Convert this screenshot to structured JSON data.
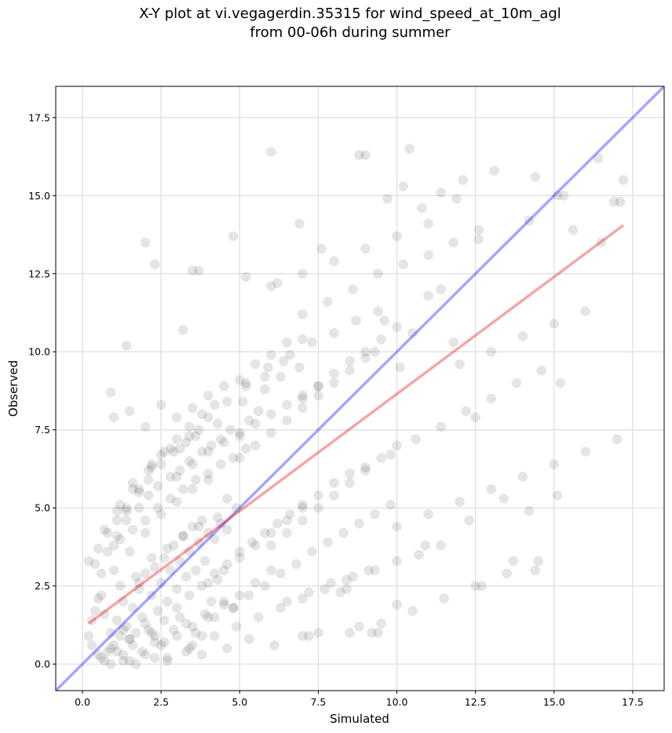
{
  "chart_data": {
    "type": "scatter",
    "title": "X-Y plot at vi.vegagerdin.35315 for wind_speed_at_10m_agl",
    "subtitle": "from 00-06h during summer",
    "xlabel": "Simulated",
    "ylabel": "Observed",
    "xlim": [
      -0.85,
      18.5
    ],
    "ylim": [
      -0.85,
      18.5
    ],
    "xticks": [
      0.0,
      2.5,
      5.0,
      7.5,
      10.0,
      12.5,
      15.0,
      17.5
    ],
    "yticks": [
      0.0,
      2.5,
      5.0,
      7.5,
      10.0,
      12.5,
      15.0,
      17.5
    ],
    "xtick_labels": [
      "0.0",
      "2.5",
      "5.0",
      "7.5",
      "10.0",
      "12.5",
      "15.0",
      "17.5"
    ],
    "ytick_labels": [
      "0.0",
      "2.5",
      "5.0",
      "7.5",
      "10.0",
      "12.5",
      "15.0",
      "17.5"
    ],
    "grid": true,
    "colors": {
      "points": "#000000",
      "identity_line": "#0000ff",
      "fit_line": "#e00000",
      "grid": "#dddddd"
    },
    "identity_line": {
      "x": [
        -0.85,
        18.5
      ],
      "y": [
        -0.85,
        18.5
      ]
    },
    "fit_line": {
      "x": [
        0.2,
        17.2
      ],
      "y": [
        1.3,
        14.05
      ]
    },
    "points": {
      "x": [
        0.8,
        0.9,
        1.0,
        1.1,
        1.2,
        1.3,
        1.4,
        1.5,
        1.6,
        1.7,
        1.8,
        1.9,
        2.0,
        2.1,
        2.2,
        2.3,
        2.4,
        2.5,
        2.6,
        2.7,
        2.8,
        2.9,
        3.0,
        3.1,
        3.2,
        3.3,
        3.4,
        3.5,
        3.6,
        3.7,
        3.8,
        3.9,
        4.0,
        4.2,
        4.4,
        4.6,
        0.5,
        0.7,
        1.0,
        1.2,
        1.5,
        1.7,
        2.0,
        2.2,
        2.5,
        2.7,
        3.0,
        3.2,
        3.5,
        3.7,
        4.0,
        4.3,
        4.6,
        4.9,
        0.6,
        0.9,
        1.3,
        1.6,
        1.9,
        2.3,
        2.6,
        2.9,
        3.3,
        3.6,
        3.9,
        4.2,
        4.5,
        4.8,
        1.1,
        1.4,
        1.8,
        2.1,
        2.4,
        2.8,
        3.1,
        3.4,
        3.8,
        4.1,
        4.4,
        4.7,
        5.0,
        5.3,
        5.6,
        0.3,
        0.6,
        1.0,
        1.4,
        1.8,
        2.2,
        2.6,
        3.0,
        3.4,
        3.8,
        4.2,
        1.5,
        2.0,
        2.5,
        3.0,
        3.5,
        4.0,
        4.5,
        5.0,
        5.5,
        6.0,
        0.4,
        0.8,
        1.2,
        1.6,
        2.0,
        2.4,
        2.8,
        3.2,
        3.6,
        4.0,
        4.4,
        4.8,
        5.2,
        2.2,
        2.6,
        3.0,
        3.4,
        3.8,
        4.2,
        4.6,
        5.0,
        5.4,
        5.8,
        6.2,
        6.6,
        7.0,
        3.0,
        3.5,
        4.0,
        4.5,
        5.0,
        5.5,
        6.0,
        6.5,
        7.0,
        7.5,
        4.0,
        4.5,
        5.0,
        5.5,
        6.0,
        6.5,
        7.0,
        7.5,
        8.0,
        8.5,
        5.0,
        5.5,
        6.0,
        6.5,
        7.0,
        7.5,
        8.0,
        8.5,
        9.0,
        6.0,
        6.5,
        7.0,
        7.5,
        8.0,
        8.5,
        9.0,
        9.5,
        10.0,
        7.0,
        7.5,
        8.0,
        8.5,
        9.0,
        9.5,
        10.0,
        4.8,
        5.3,
        5.8,
        6.3,
        6.8,
        7.3,
        7.8,
        8.3,
        8.8,
        9.3,
        9.8,
        5.2,
        5.9,
        6.6,
        7.3,
        8.0,
        8.7,
        9.4,
        3.5,
        4.2,
        4.9,
        5.6,
        6.3,
        7.0,
        7.7,
        8.4,
        9.1,
        1.0,
        1.5,
        2.0,
        2.5,
        3.0,
        3.5,
        4.0,
        4.5,
        5.0,
        5.5,
        6.0,
        6.5,
        1.2,
        1.6,
        2.1,
        2.5,
        3.1,
        3.6,
        4.3,
        5.1,
        5.8,
        6.3,
        6.9,
        0.9,
        1.3,
        1.7,
        2.3,
        2.7,
        3.3,
        3.8,
        4.6,
        5.3,
        6.1,
        0.2,
        0.5,
        0.8,
        1.1,
        1.4,
        1.8,
        2.1,
        2.5,
        2.9,
        3.3,
        3.7,
        6.5,
        7.2,
        7.9,
        8.6,
        9.3,
        10.0,
        10.7,
        11.4,
        7.0,
        7.8,
        8.6,
        9.4,
        10.2,
        11.0,
        11.8,
        12.6,
        9.0,
        9.8,
        10.6,
        11.4,
        12.2,
        13.0,
        13.8,
        14.6,
        10.0,
        11.0,
        12.0,
        13.0,
        14.0,
        15.0,
        16.0,
        17.0,
        8.5,
        9.5,
        10.5,
        11.5,
        12.5,
        13.5,
        14.5,
        6.0,
        7.0,
        8.0,
        9.0,
        10.0,
        11.0,
        12.0,
        13.0,
        14.0,
        15.0,
        16.0,
        0.9,
        1.4,
        2.0,
        2.3,
        3.5,
        3.7,
        3.2,
        4.8,
        5.2,
        6.0,
        6.2,
        6.9,
        7.6,
        8.8,
        9.0,
        10.4,
        9.7,
        10.2,
        10.8,
        11.4,
        11.9,
        12.1,
        12.6,
        13.1,
        14.2,
        14.4,
        15.1,
        15.3,
        15.6,
        16.4,
        16.5,
        16.9,
        17.2,
        17.1,
        15.2,
        15.1,
        14.4,
        14.2,
        13.7,
        13.4,
        12.7,
        12.3,
        12.5,
        10.9,
        10.0,
        9.3,
        9.6,
        10.1,
        10.5,
        11.0,
        11.4,
        11.8,
        9.4,
        9.2,
        8.8,
        8.4,
        8.2,
        7.5,
        7.0,
        7.2,
        0.3,
        0.5,
        0.7,
        0.2,
        0.4,
        0.6,
        1.1,
        1.3,
        1.5,
        1.8,
        2.0,
        2.3,
        2.7,
        3.1,
        3.4,
        3.8,
        4.1,
        4.3,
        0.7,
        1.1,
        1.6,
        2.2,
        2.8,
        3.4,
        4.0,
        4.6,
        5.2,
        5.8,
        6.4,
        7.0
      ],
      "y": [
        0.4,
        1.0,
        0.6,
        1.4,
        0.9,
        2.0,
        1.2,
        0.8,
        1.8,
        1.0,
        2.4,
        1.5,
        2.9,
        1.1,
        2.2,
        3.1,
        1.7,
        2.6,
        3.4,
        2.0,
        3.0,
        3.8,
        2.4,
        3.3,
        4.1,
        2.8,
        3.6,
        4.4,
        3.0,
        3.9,
        4.6,
        3.3,
        4.2,
        4.0,
        4.5,
        4.3,
        2.1,
        1.6,
        3.0,
        2.5,
        3.6,
        2.8,
        4.2,
        3.4,
        4.8,
        3.7,
        5.2,
        4.1,
        5.6,
        4.4,
        5.9,
        4.7,
        5.3,
        5.0,
        0.2,
        0.5,
        0.3,
        0.6,
        0.4,
        0.9,
        0.7,
        1.1,
        1.3,
        1.0,
        1.6,
        1.5,
        2.0,
        1.8,
        4.1,
        4.6,
        5.0,
        5.4,
        5.7,
        6.0,
        6.2,
        6.5,
        6.8,
        7.0,
        7.2,
        7.5,
        7.3,
        7.8,
        8.1,
        1.4,
        2.9,
        3.8,
        4.9,
        5.6,
        6.3,
        6.8,
        7.2,
        7.6,
        8.0,
        8.3,
        0.1,
        0.3,
        0.6,
        0.9,
        1.2,
        1.5,
        1.9,
        2.2,
        2.6,
        3.0,
        3.2,
        3.6,
        4.0,
        4.3,
        4.6,
        5.0,
        5.3,
        5.6,
        5.9,
        6.1,
        6.4,
        6.6,
        6.9,
        1.0,
        1.4,
        1.8,
        2.2,
        2.5,
        2.9,
        3.2,
        3.6,
        3.9,
        4.2,
        4.5,
        4.8,
        5.1,
        6.0,
        6.4,
        6.8,
        7.1,
        7.4,
        7.7,
        8.0,
        8.3,
        8.6,
        8.9,
        2.6,
        3.0,
        3.4,
        3.8,
        4.2,
        4.6,
        5.0,
        5.4,
        5.8,
        6.1,
        6.6,
        7.0,
        7.4,
        7.8,
        8.2,
        8.6,
        9.0,
        9.4,
        9.8,
        3.8,
        4.2,
        4.6,
        5.0,
        5.4,
        5.8,
        6.2,
        6.6,
        7.0,
        8.5,
        8.9,
        9.3,
        9.7,
        10.0,
        10.4,
        10.8,
        1.8,
        2.2,
        2.5,
        2.9,
        3.2,
        3.6,
        3.9,
        4.2,
        4.5,
        4.8,
        5.1,
        9.0,
        9.5,
        9.9,
        10.3,
        10.6,
        11.0,
        11.3,
        0.6,
        0.9,
        1.2,
        1.5,
        1.8,
        2.1,
        2.4,
        2.7,
        3.0,
        7.9,
        8.1,
        7.6,
        8.3,
        7.9,
        8.2,
        8.6,
        8.9,
        9.1,
        9.6,
        9.9,
        10.3,
        5.1,
        5.6,
        6.2,
        6.7,
        6.9,
        7.3,
        7.7,
        8.4,
        8.8,
        9.2,
        9.5,
        0.0,
        0.1,
        0.0,
        0.2,
        0.1,
        0.4,
        0.3,
        0.5,
        0.8,
        0.6,
        3.3,
        3.7,
        4.2,
        4.6,
        5.0,
        5.5,
        5.9,
        6.4,
        6.8,
        7.1,
        7.5,
        2.0,
        2.3,
        2.6,
        2.8,
        3.0,
        3.3,
        3.5,
        3.8,
        11.2,
        11.6,
        12.0,
        12.5,
        12.8,
        13.1,
        13.5,
        13.9,
        6.3,
        6.7,
        7.2,
        7.6,
        8.1,
        8.5,
        9.0,
        9.4,
        4.4,
        4.8,
        5.2,
        5.6,
        6.0,
        6.4,
        6.8,
        7.2,
        1.0,
        1.3,
        1.7,
        2.1,
        2.5,
        2.9,
        3.3,
        12.1,
        12.5,
        12.9,
        13.3,
        13.7,
        14.1,
        9.6,
        10.0,
        10.5,
        10.9,
        11.3,
        8.7,
        10.2,
        13.5,
        12.8,
        12.6,
        12.6,
        10.7,
        13.7,
        12.4,
        16.4,
        12.2,
        14.1,
        13.3,
        16.3,
        16.3,
        16.5,
        14.9,
        15.3,
        14.6,
        15.1,
        14.9,
        15.5,
        13.6,
        15.8,
        14.2,
        15.6,
        15.0,
        15.0,
        13.9,
        16.2,
        13.5,
        14.8,
        15.5,
        14.8,
        9.0,
        5.4,
        3.0,
        4.9,
        3.3,
        5.3,
        2.5,
        4.6,
        7.9,
        3.8,
        1.9,
        10.0,
        11.0,
        9.5,
        10.6,
        11.8,
        12.0,
        10.3,
        1.0,
        1.0,
        1.2,
        2.4,
        2.3,
        1.0,
        0.9,
        0.9,
        0.6,
        0.3,
        0.1,
        0.9,
        1.7,
        2.2,
        0.4,
        1.1,
        0.8,
        2.6,
        1.3,
        0.7,
        0.2,
        1.5,
        0.5,
        0.9,
        2.0,
        2.7,
        4.3,
        4.9,
        5.8,
        6.4,
        6.9,
        7.3,
        7.9,
        8.4,
        8.9,
        9.2,
        9.7,
        10.4
      ]
    }
  }
}
